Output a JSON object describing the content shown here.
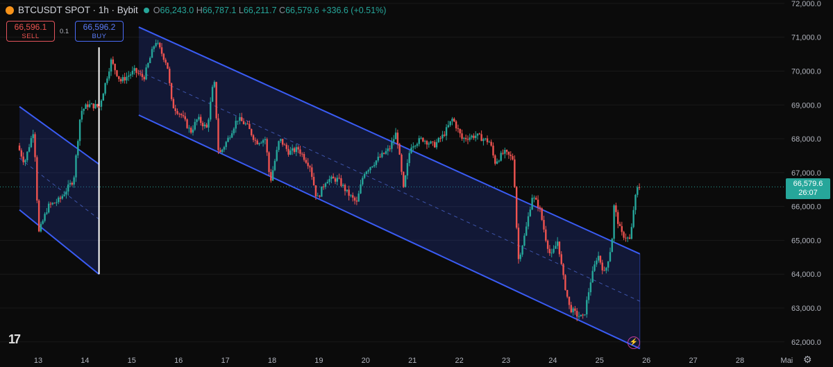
{
  "header": {
    "symbol": "BTCUSDT SPOT · 1h · Bybit",
    "open_label": "O",
    "open": "66,243.0",
    "high_label": "H",
    "high": "66,787.1",
    "low_label": "L",
    "low": "66,211.7",
    "close_label": "C",
    "close": "66,579.6",
    "change": "+336.6 (+0.51%)"
  },
  "trade": {
    "sell_price": "66,596.1",
    "sell_label": "SELL",
    "spread": "0.1",
    "buy_price": "66,596.2",
    "buy_label": "BUY"
  },
  "price_tag": {
    "price": "66,579.6",
    "countdown": "26:07"
  },
  "colors": {
    "up": "#26a69a",
    "down": "#ef5350",
    "channel": "#3a5cf5",
    "background": "#0b0b0b"
  },
  "icons": {
    "logo": "tradingview-logo-icon",
    "settings": "gear-icon",
    "alert": "lightning-icon"
  },
  "chart_data": {
    "type": "candlestick",
    "y_axis": {
      "ticks": [
        62000,
        63000,
        64000,
        65000,
        66000,
        67000,
        68000,
        69000,
        70000,
        71000,
        72000
      ],
      "tick_labels": [
        "62,000.0",
        "63,000.0",
        "64,000.0",
        "65,000.0",
        "66,000.0",
        "67,000.0",
        "68,000.0",
        "69,000.0",
        "70,000.0",
        "71,000.0",
        "72,000.0"
      ],
      "range": [
        61750,
        72100
      ]
    },
    "x_axis": {
      "tick_labels": [
        "13",
        "14",
        "15",
        "16",
        "17",
        "18",
        "19",
        "20",
        "21",
        "22",
        "23",
        "24",
        "25",
        "26",
        "27",
        "28",
        "Mai"
      ],
      "range_days": [
        12.6,
        29.0
      ]
    },
    "current_price": 66579.6,
    "price_path": [
      [
        12.6,
        67800
      ],
      [
        12.75,
        67300
      ],
      [
        12.95,
        68300
      ],
      [
        13.05,
        65200
      ],
      [
        13.25,
        66000
      ],
      [
        13.5,
        66200
      ],
      [
        13.8,
        66800
      ],
      [
        13.95,
        68800
      ],
      [
        14.1,
        69000
      ],
      [
        14.35,
        68950
      ],
      [
        14.6,
        70300
      ],
      [
        14.8,
        69700
      ],
      [
        15.1,
        70000
      ],
      [
        15.3,
        69800
      ],
      [
        15.55,
        70900
      ],
      [
        15.8,
        70200
      ],
      [
        15.9,
        69000
      ],
      [
        16.1,
        68700
      ],
      [
        16.3,
        68200
      ],
      [
        16.45,
        68600
      ],
      [
        16.65,
        68300
      ],
      [
        16.8,
        69800
      ],
      [
        16.9,
        67500
      ],
      [
        17.1,
        68000
      ],
      [
        17.3,
        68600
      ],
      [
        17.5,
        68400
      ],
      [
        17.7,
        67900
      ],
      [
        17.9,
        68000
      ],
      [
        18.0,
        66700
      ],
      [
        18.2,
        68000
      ],
      [
        18.4,
        67600
      ],
      [
        18.6,
        67700
      ],
      [
        18.85,
        67200
      ],
      [
        19.0,
        66200
      ],
      [
        19.2,
        66800
      ],
      [
        19.45,
        66800
      ],
      [
        19.65,
        66400
      ],
      [
        19.85,
        66100
      ],
      [
        20.0,
        67000
      ],
      [
        20.3,
        67400
      ],
      [
        20.55,
        67700
      ],
      [
        20.7,
        68200
      ],
      [
        20.85,
        66500
      ],
      [
        21.0,
        67800
      ],
      [
        21.25,
        68000
      ],
      [
        21.5,
        67800
      ],
      [
        21.7,
        68100
      ],
      [
        21.9,
        68600
      ],
      [
        22.1,
        68000
      ],
      [
        22.4,
        68100
      ],
      [
        22.7,
        67900
      ],
      [
        22.8,
        67300
      ],
      [
        23.0,
        67600
      ],
      [
        23.2,
        67400
      ],
      [
        23.3,
        64400
      ],
      [
        23.45,
        65200
      ],
      [
        23.6,
        66300
      ],
      [
        23.75,
        66000
      ],
      [
        23.9,
        65000
      ],
      [
        24.0,
        64500
      ],
      [
        24.15,
        65000
      ],
      [
        24.25,
        64000
      ],
      [
        24.4,
        63000
      ],
      [
        24.55,
        62800
      ],
      [
        24.7,
        62700
      ],
      [
        24.85,
        63800
      ],
      [
        25.0,
        64600
      ],
      [
        25.15,
        64000
      ],
      [
        25.3,
        64900
      ],
      [
        25.35,
        66000
      ],
      [
        25.5,
        65200
      ],
      [
        25.7,
        65000
      ],
      [
        25.78,
        66100
      ],
      [
        25.86,
        66579.6
      ]
    ],
    "channels": [
      {
        "upper": [
          [
            12.6,
            68950
          ],
          [
            14.3,
            67250
          ]
        ],
        "lower": [
          [
            12.6,
            65900
          ],
          [
            14.3,
            64000
          ]
        ]
      },
      {
        "upper": [
          [
            15.15,
            71300
          ],
          [
            25.86,
            64600
          ]
        ],
        "lower": [
          [
            15.15,
            68700
          ],
          [
            25.86,
            61800
          ]
        ]
      }
    ],
    "vertical_marker": {
      "x": 14.3,
      "from": 64000,
      "to": 70700
    }
  }
}
